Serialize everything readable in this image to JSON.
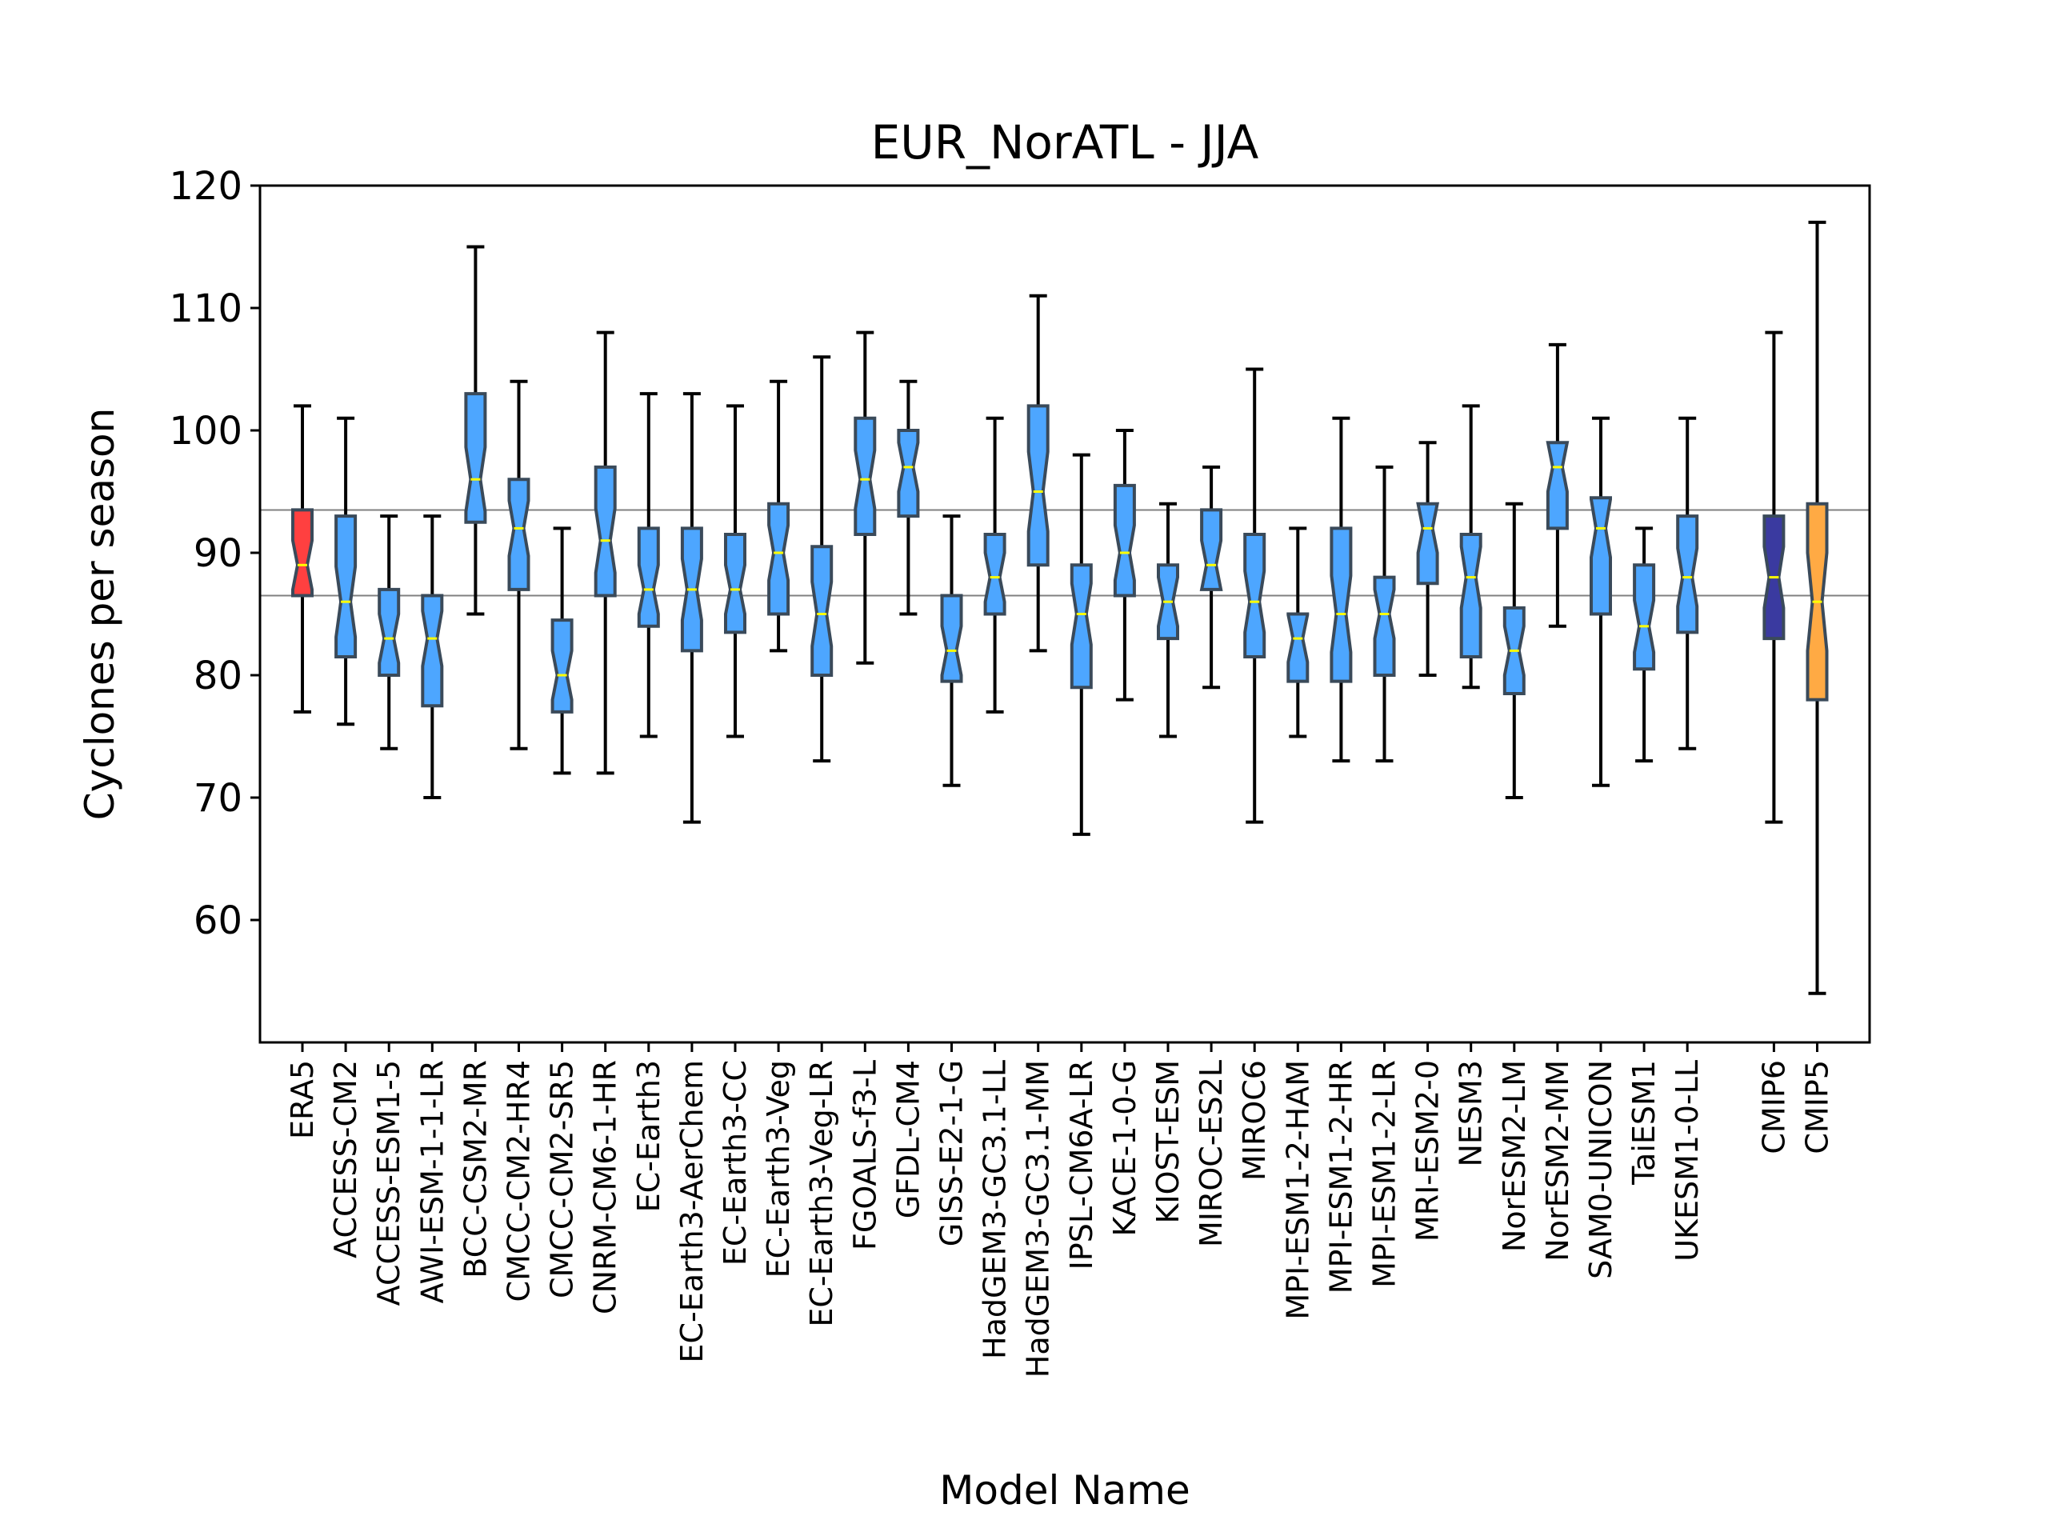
{
  "chart_data": {
    "type": "boxplot",
    "title": "EUR_NorATL - JJA",
    "xlabel": "Model Name",
    "ylabel": "Cyclones per season",
    "ylim": [
      50,
      120
    ],
    "yticks": [
      60,
      70,
      80,
      90,
      100,
      110,
      120
    ],
    "notched": true,
    "reference_lines": [
      93.5,
      86.5
    ],
    "reference_line_color": "#808080",
    "median_color": "#ffff00",
    "colors": {
      "reanalysis": "#ff4040",
      "models": "#4da6ff",
      "cmip6": "#3a3aa0",
      "cmip5": "#ffaa44"
    },
    "series": [
      {
        "name": "ERA5",
        "group": "reanalysis",
        "whislo": 77,
        "q1": 86.5,
        "med": 89,
        "q3": 93.5,
        "whishi": 102
      },
      {
        "name": "ACCESS-CM2",
        "group": "models",
        "whislo": 76,
        "q1": 81.5,
        "med": 86,
        "q3": 93,
        "whishi": 101
      },
      {
        "name": "ACCESS-ESM1-5",
        "group": "models",
        "whislo": 74,
        "q1": 80,
        "med": 83,
        "q3": 87,
        "whishi": 93
      },
      {
        "name": "AWI-ESM-1-1-LR",
        "group": "models",
        "whislo": 70,
        "q1": 77.5,
        "med": 83,
        "q3": 86.5,
        "whishi": 93
      },
      {
        "name": "BCC-CSM2-MR",
        "group": "models",
        "whislo": 85,
        "q1": 92.5,
        "med": 96,
        "q3": 103,
        "whishi": 115
      },
      {
        "name": "CMCC-CM2-HR4",
        "group": "models",
        "whislo": 74,
        "q1": 87,
        "med": 92,
        "q3": 96,
        "whishi": 104
      },
      {
        "name": "CMCC-CM2-SR5",
        "group": "models",
        "whislo": 72,
        "q1": 77,
        "med": 80,
        "q3": 84.5,
        "whishi": 92
      },
      {
        "name": "CNRM-CM6-1-HR",
        "group": "models",
        "whislo": 72,
        "q1": 86.5,
        "med": 91,
        "q3": 97,
        "whishi": 108
      },
      {
        "name": "EC-Earth3",
        "group": "models",
        "whislo": 75,
        "q1": 84,
        "med": 87,
        "q3": 92,
        "whishi": 103
      },
      {
        "name": "EC-Earth3-AerChem",
        "group": "models",
        "whislo": 68,
        "q1": 82,
        "med": 87,
        "q3": 92,
        "whishi": 103
      },
      {
        "name": "EC-Earth3-CC",
        "group": "models",
        "whislo": 75,
        "q1": 83.5,
        "med": 87,
        "q3": 91.5,
        "whishi": 102
      },
      {
        "name": "EC-Earth3-Veg",
        "group": "models",
        "whislo": 82,
        "q1": 85,
        "med": 90,
        "q3": 94,
        "whishi": 104
      },
      {
        "name": "EC-Earth3-Veg-LR",
        "group": "models",
        "whislo": 73,
        "q1": 80,
        "med": 85,
        "q3": 90.5,
        "whishi": 106
      },
      {
        "name": "FGOALS-f3-L",
        "group": "models",
        "whislo": 81,
        "q1": 91.5,
        "med": 96,
        "q3": 101,
        "whishi": 108
      },
      {
        "name": "GFDL-CM4",
        "group": "models",
        "whislo": 85,
        "q1": 93,
        "med": 97,
        "q3": 100,
        "whishi": 104
      },
      {
        "name": "GISS-E2-1-G",
        "group": "models",
        "whislo": 71,
        "q1": 79.5,
        "med": 82,
        "q3": 86.5,
        "whishi": 93
      },
      {
        "name": "HadGEM3-GC3.1-LL",
        "group": "models",
        "whislo": 77,
        "q1": 85,
        "med": 88,
        "q3": 91.5,
        "whishi": 101
      },
      {
        "name": "HadGEM3-GC3.1-MM",
        "group": "models",
        "whislo": 82,
        "q1": 89,
        "med": 95,
        "q3": 102,
        "whishi": 111
      },
      {
        "name": "IPSL-CM6A-LR",
        "group": "models",
        "whislo": 67,
        "q1": 79,
        "med": 85,
        "q3": 89,
        "whishi": 98
      },
      {
        "name": "KACE-1-0-G",
        "group": "models",
        "whislo": 78,
        "q1": 86.5,
        "med": 90,
        "q3": 95.5,
        "whishi": 100
      },
      {
        "name": "KIOST-ESM",
        "group": "models",
        "whislo": 75,
        "q1": 83,
        "med": 86,
        "q3": 89,
        "whishi": 94
      },
      {
        "name": "MIROC-ES2L",
        "group": "models",
        "whislo": 79,
        "q1": 87,
        "med": 89,
        "q3": 93.5,
        "whishi": 97
      },
      {
        "name": "MIROC6",
        "group": "models",
        "whislo": 68,
        "q1": 81.5,
        "med": 86,
        "q3": 91.5,
        "whishi": 105
      },
      {
        "name": "MPI-ESM1-2-HAM",
        "group": "models",
        "whislo": 75,
        "q1": 79.5,
        "med": 83,
        "q3": 85,
        "whishi": 92
      },
      {
        "name": "MPI-ESM1-2-HR",
        "group": "models",
        "whislo": 73,
        "q1": 79.5,
        "med": 85,
        "q3": 92,
        "whishi": 101
      },
      {
        "name": "MPI-ESM1-2-LR",
        "group": "models",
        "whislo": 73,
        "q1": 80,
        "med": 85,
        "q3": 88,
        "whishi": 97
      },
      {
        "name": "MRI-ESM2-0",
        "group": "models",
        "whislo": 80,
        "q1": 87.5,
        "med": 92,
        "q3": 94,
        "whishi": 99
      },
      {
        "name": "NESM3",
        "group": "models",
        "whislo": 79,
        "q1": 81.5,
        "med": 88,
        "q3": 91.5,
        "whishi": 102
      },
      {
        "name": "NorESM2-LM",
        "group": "models",
        "whislo": 70,
        "q1": 78.5,
        "med": 82,
        "q3": 85.5,
        "whishi": 94
      },
      {
        "name": "NorESM2-MM",
        "group": "models",
        "whislo": 84,
        "q1": 92,
        "med": 97,
        "q3": 99,
        "whishi": 107
      },
      {
        "name": "SAM0-UNICON",
        "group": "models",
        "whislo": 71,
        "q1": 85,
        "med": 92,
        "q3": 94.5,
        "whishi": 101
      },
      {
        "name": "TaiESM1",
        "group": "models",
        "whislo": 73,
        "q1": 80.5,
        "med": 84,
        "q3": 89,
        "whishi": 92
      },
      {
        "name": "UKESM1-0-LL",
        "group": "models",
        "whislo": 74,
        "q1": 83.5,
        "med": 88,
        "q3": 93,
        "whishi": 101
      },
      {
        "name": "CMIP6",
        "group": "cmip6",
        "whislo": 68,
        "q1": 83,
        "med": 88,
        "q3": 93,
        "whishi": 108
      },
      {
        "name": "CMIP5",
        "group": "cmip5",
        "whislo": 54,
        "q1": 78,
        "med": 86,
        "q3": 94,
        "whishi": 117
      }
    ]
  }
}
